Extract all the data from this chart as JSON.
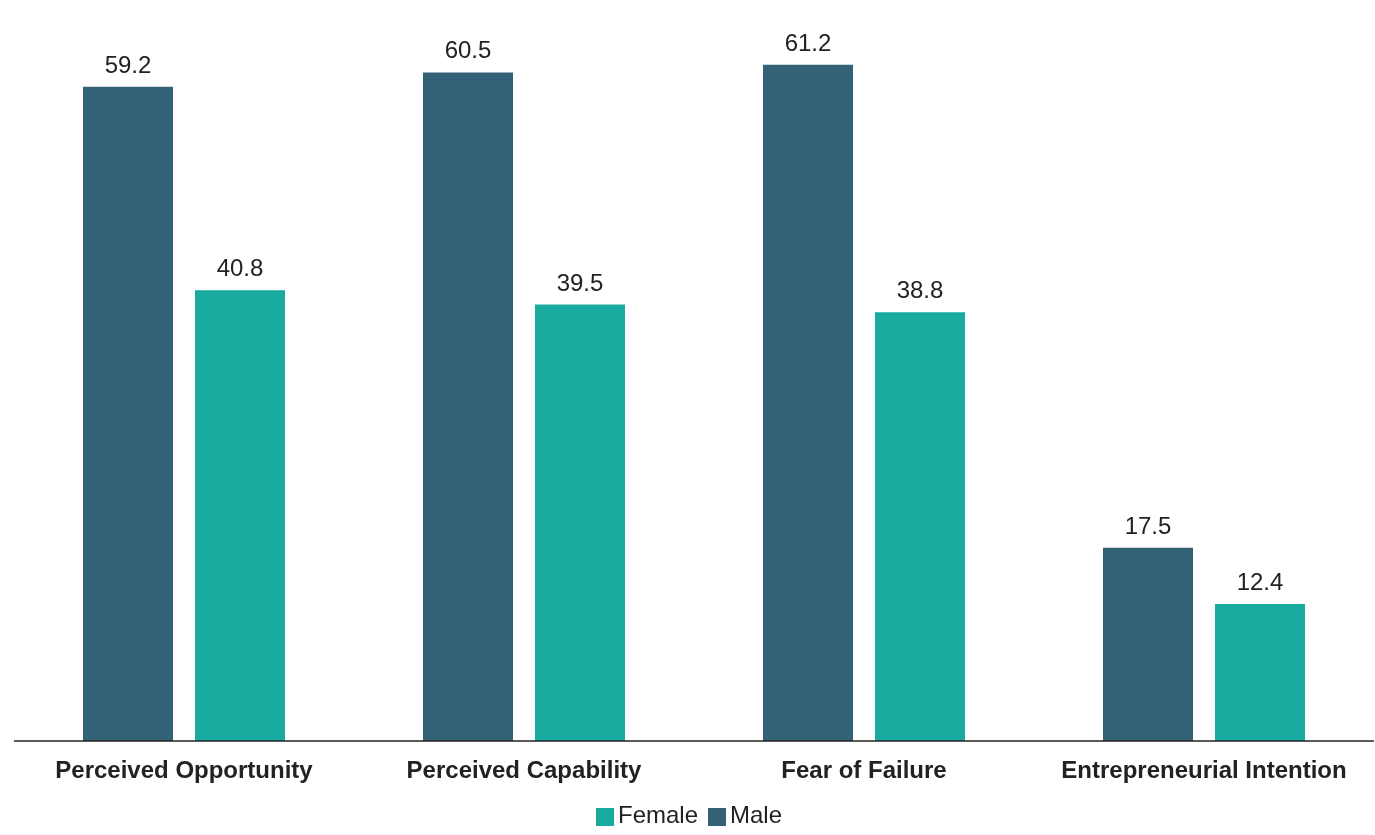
{
  "chart_data": {
    "type": "bar",
    "categories": [
      "Perceived Opportunity",
      "Perceived Capability",
      "Fear of Failure",
      "Entrepreneurial Intention"
    ],
    "series": [
      {
        "name": "Male",
        "color": "#336175",
        "values": [
          59.2,
          60.5,
          61.2,
          17.5
        ]
      },
      {
        "name": "Female",
        "color": "#1aaba0",
        "values": [
          40.8,
          39.5,
          38.8,
          12.4
        ]
      }
    ],
    "data_labels": true,
    "legend": "bottom",
    "grid": false
  }
}
